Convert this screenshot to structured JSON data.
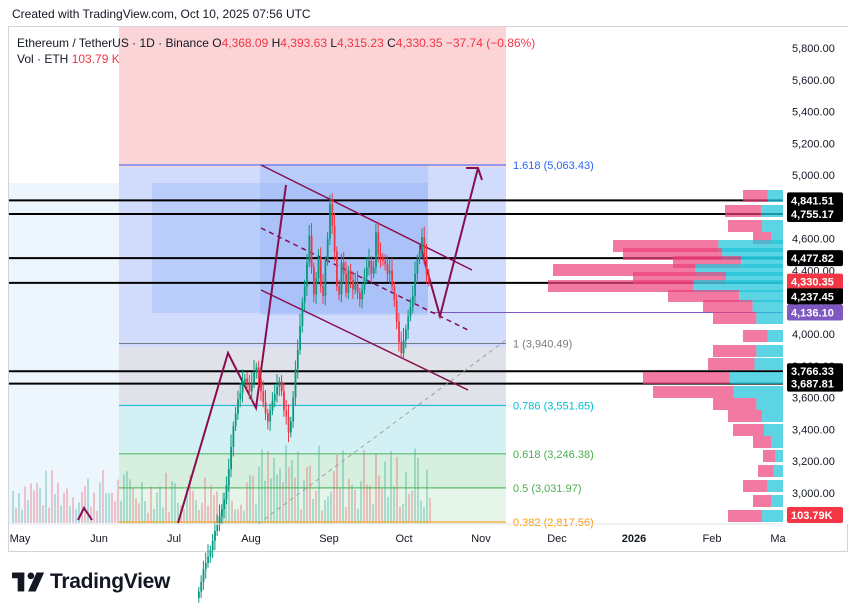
{
  "header": {
    "created_text": "Created with TradingView.com, Oct 10, 2025 07:56 UTC"
  },
  "legend": {
    "symbol": "Ethereum / TetherUS · 1D · Binance",
    "o_label": "O",
    "o_value": "4,368.09",
    "h_label": "H",
    "h_value": "4,393.63",
    "l_label": "L",
    "l_value": "4,315.23",
    "c_label": "C",
    "c_value": "4,330.35",
    "change": "−37.74 (−0.86%)",
    "vol_label": "Vol · ETH",
    "vol_value": "103.79 K"
  },
  "brand": {
    "name": "TradingView"
  },
  "colors": {
    "up": "#089981",
    "down": "#f23645",
    "trend": "#880e4f",
    "fib_blue": "#2962ff",
    "fib_teal": "#00bcd4",
    "fib_green": "#4caf50",
    "fib_orange": "#ff9800",
    "red_zone": "#f8c6c9",
    "blue_zone": "#c5d3fb"
  },
  "chart_data": {
    "type": "candlestick",
    "title": "Ethereum / TetherUS",
    "timeframe": "1D",
    "exchange": "Binance",
    "ohlc_last": {
      "open": 4368.09,
      "high": 4393.63,
      "low": 4315.23,
      "close": 4330.35,
      "change": -37.74,
      "change_pct": -0.86
    },
    "volume_last": "103.79K",
    "ylim": [
      2750,
      5950
    ],
    "y_ticks": [
      "3,000.00",
      "3,200.00",
      "3,400.00",
      "3,600.00",
      "3,800.00",
      "4,000.00",
      "4,200.00",
      "4,400.00",
      "4,600.00",
      "4,800.00",
      "5,000.00",
      "5,200.00",
      "5,400.00",
      "5,600.00",
      "5,800.00"
    ],
    "x_ticks": [
      "May",
      "Jun",
      "Jul",
      "Aug",
      "Sep",
      "Oct",
      "Nov",
      "Dec",
      "2026",
      "Feb",
      "Ma"
    ],
    "price_levels": [
      "4,841.51",
      "4,755.17",
      "4,477.82",
      "4,322.34",
      "3,766.33",
      "3,687.81"
    ],
    "level_values": [
      4841.51,
      4755.17,
      4477.82,
      4322.34,
      3766.33,
      3687.81
    ],
    "current_price_label": "4,330.35",
    "current_price": 4330.35,
    "marker_labels": [
      "4,237.45",
      "4,136.10"
    ],
    "marker_values": [
      4237.45,
      4136.1
    ],
    "volume_badge": "103.79K",
    "fibonacci": [
      {
        "ratio": "1.618",
        "label": "1.618 (5,063.43)",
        "price": 5063.43,
        "color": "#2962ff"
      },
      {
        "ratio": "1",
        "label": "1 (3,940.49)",
        "price": 3940.49,
        "color": "#787b86"
      },
      {
        "ratio": "0.786",
        "label": "0.786 (3,551.65)",
        "price": 3551.65,
        "color": "#00bcd4"
      },
      {
        "ratio": "0.618",
        "label": "0.618 (3,246.38)",
        "price": 3246.38,
        "color": "#4caf50"
      },
      {
        "ratio": "0.5",
        "label": "0.5 (3,031.97)",
        "price": 3031.97,
        "color": "#4caf50"
      },
      {
        "ratio": "0.382",
        "label": "0.382 (2,817.56)",
        "price": 2817.56,
        "color": "#ff9800"
      }
    ],
    "closes": [
      2380,
      2440,
      2520,
      2560,
      2600,
      2640,
      2700,
      2760,
      2800,
      2850,
      2900,
      2960,
      3050,
      3150,
      3290,
      3420,
      3500,
      3590,
      3630,
      3700,
      3720,
      3690,
      3640,
      3690,
      3760,
      3790,
      3720,
      3640,
      3570,
      3500,
      3450,
      3520,
      3580,
      3620,
      3670,
      3700,
      3640,
      3520,
      3480,
      3380,
      3450,
      3600,
      3780,
      3900,
      4050,
      4200,
      4300,
      4450,
      4620,
      4420,
      4250,
      4350,
      4480,
      4300,
      4240,
      4460,
      4600,
      4820,
      4680,
      4520,
      4300,
      4250,
      4450,
      4380,
      4260,
      4400,
      4340,
      4280,
      4320,
      4260,
      4220,
      4280,
      4360,
      4420,
      4460,
      4380,
      4420,
      4640,
      4500,
      4480,
      4460,
      4440,
      4380,
      4400,
      4300,
      4210,
      4080,
      3950,
      3880,
      3960,
      4030,
      4110,
      4170,
      4240,
      4380,
      4470,
      4520,
      4610,
      4490,
      4380,
      4330
    ]
  }
}
